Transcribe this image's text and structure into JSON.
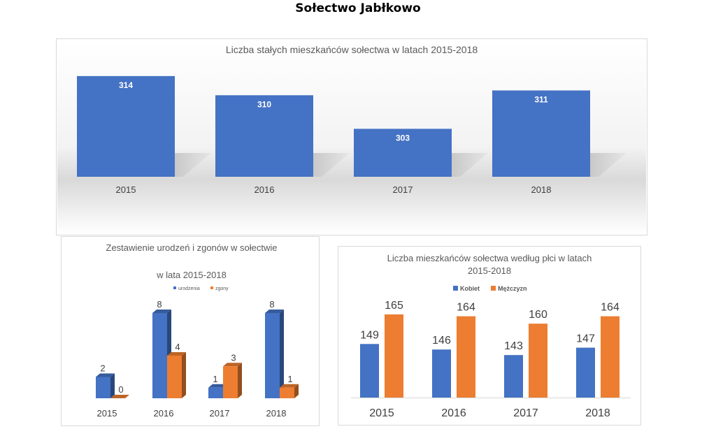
{
  "page": {
    "title": "Sołectwo Jabłkowo"
  },
  "colors": {
    "blue": "#4472C4",
    "orange": "#ED7D31",
    "text": "#595959"
  },
  "chart_data": [
    {
      "type": "bar",
      "title": "Liczba stałych mieszkańców sołectwa w latach 2015-2018",
      "categories": [
        "2015",
        "2016",
        "2017",
        "2018"
      ],
      "series": [
        {
          "values": [
            314,
            310,
            303,
            311
          ]
        }
      ],
      "data_labels": [
        "314",
        "310",
        "303",
        "311"
      ],
      "ylim": [
        293,
        315
      ],
      "style": "3d-shadow",
      "legend": "none"
    },
    {
      "type": "bar",
      "title_lines": [
        "Zestawienie urodzeń i zgonów w sołectwie",
        "w lata 2015-2018"
      ],
      "categories": [
        "2015",
        "2016",
        "2017",
        "2018"
      ],
      "series": [
        {
          "name": "urodzenia",
          "values": [
            2,
            8,
            1,
            8
          ]
        },
        {
          "name": "zgony",
          "values": [
            0,
            4,
            3,
            1
          ]
        }
      ],
      "data_labels": [
        [
          "2",
          "8",
          "1",
          "8"
        ],
        [
          "0",
          "4",
          "3",
          "1"
        ]
      ],
      "ylim": [
        0,
        8
      ],
      "style": "3d",
      "legend": "top"
    },
    {
      "type": "bar",
      "title_lines": [
        "Liczba mieszkańców sołectwa   według płci w latach",
        "2015-2018"
      ],
      "categories": [
        "2015",
        "2016",
        "2017",
        "2018"
      ],
      "series": [
        {
          "name": "Kobiet",
          "values": [
            149,
            146,
            143,
            147
          ]
        },
        {
          "name": "Mężczyzn",
          "values": [
            165,
            164,
            160,
            164
          ]
        }
      ],
      "data_labels": [
        [
          "149",
          "146",
          "143",
          "147"
        ],
        [
          "165",
          "164",
          "160",
          "164"
        ]
      ],
      "ylim": [
        120,
        170
      ],
      "legend": "top"
    }
  ]
}
